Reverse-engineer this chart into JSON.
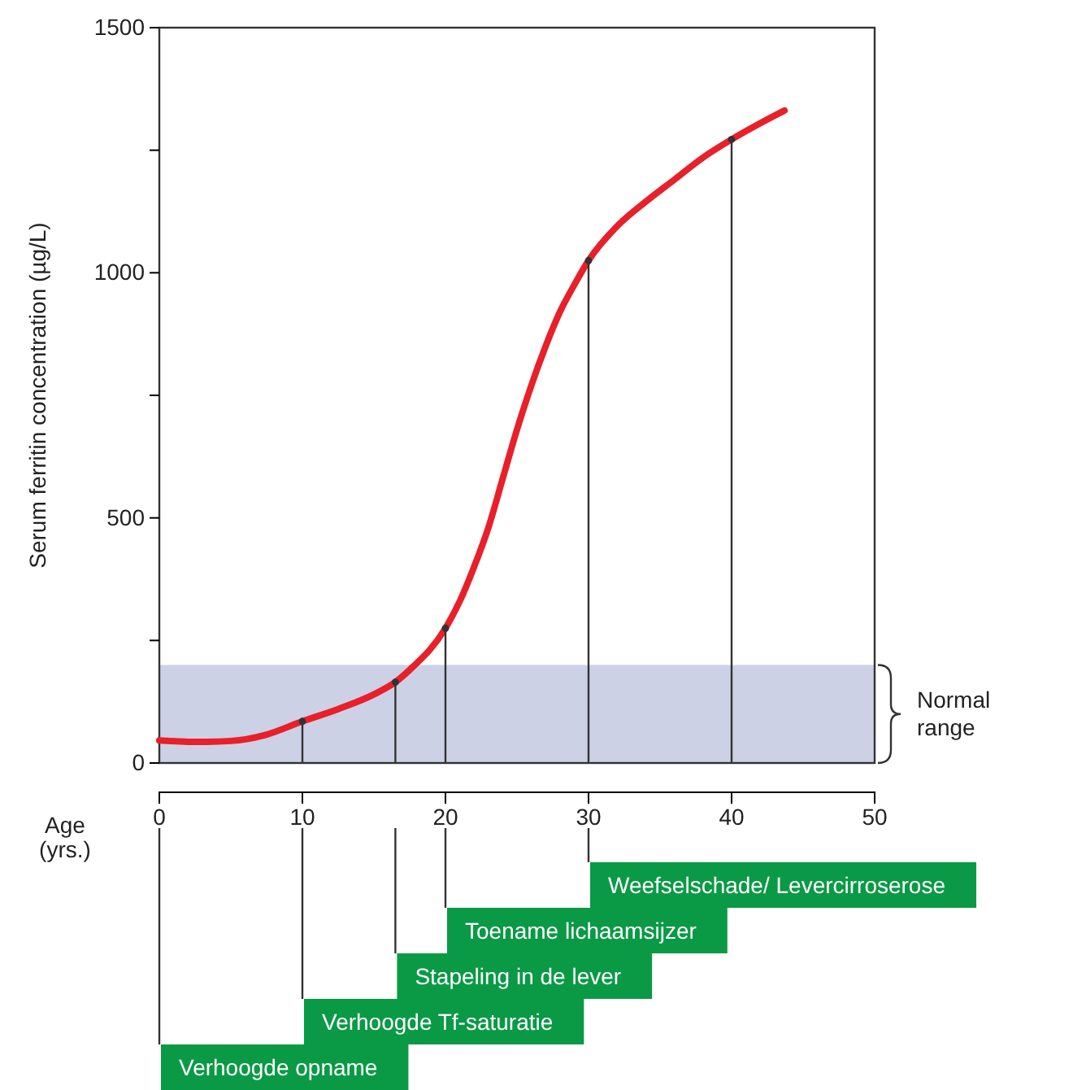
{
  "chart_data": {
    "type": "line",
    "xlabel": "Age (yrs.)",
    "ylabel": "Serum ferritin concentration (µg/L)",
    "xlim": [
      0,
      50
    ],
    "xticks": [
      0,
      10,
      20,
      30,
      40,
      50
    ],
    "ylim": [
      0,
      1500
    ],
    "yticks": [
      0,
      {
        "value": 250,
        "label": null
      },
      500,
      {
        "value": 750,
        "label": null
      },
      1000,
      {
        "value": 1250,
        "label": null
      },
      1500
    ],
    "series": [
      {
        "color": "#e8202a",
        "x": [
          0,
          2.5,
          5,
          7.5,
          10,
          12.5,
          15,
          16.5,
          17.5,
          20,
          21,
          22,
          23,
          24,
          25,
          26,
          27,
          28,
          29,
          30,
          32,
          34,
          36,
          38,
          40,
          42,
          43.7
        ],
        "values": [
          46,
          43,
          45,
          58,
          85,
          110,
          140,
          165,
          190,
          275,
          330,
          400,
          480,
          580,
          680,
          770,
          850,
          920,
          975,
          1025,
          1095,
          1145,
          1190,
          1235,
          1272,
          1305,
          1331
        ]
      },
      {
        "type": "lollipop",
        "color": "#333333",
        "x": [
          10,
          16.5,
          20,
          30,
          40
        ],
        "values": [
          85,
          165,
          275,
          1025,
          1272
        ]
      }
    ],
    "bands": [
      {
        "axis": "y",
        "from": 0,
        "to": 200,
        "label": "Normal range",
        "color": "#cdd1e6"
      }
    ],
    "annotations": [
      "Weefselschade/ Levercirroserose",
      "Toename lichaamsijzer",
      "Stapeling in de lever",
      "Verhoogde Tf-saturatie",
      "Verhoogde opname"
    ],
    "line_style": "solid"
  }
}
